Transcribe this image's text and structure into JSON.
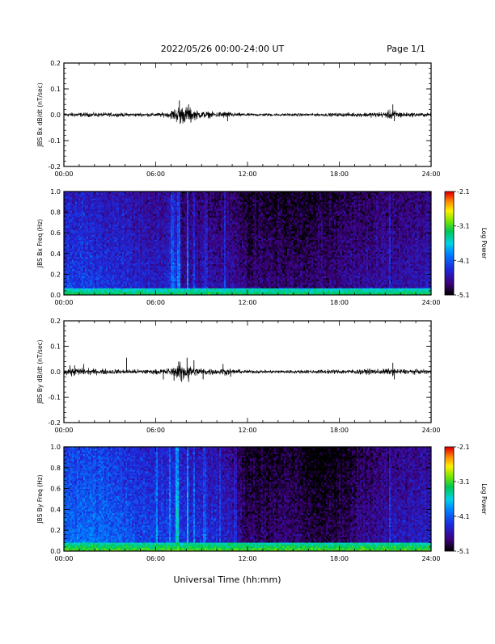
{
  "header": {
    "title": "2022/05/26  00:00-24:00 UT",
    "page": "Page 1/1"
  },
  "xlabel": "Universal Time (hh:mm)",
  "chart_data": [
    {
      "type": "line",
      "ylabel": "JBS Bx dB/dt (nT/sec)",
      "xlim": [
        0,
        24
      ],
      "ylim": [
        -0.2,
        0.2
      ],
      "x_ticks": [
        "00:00",
        "06:00",
        "12:00",
        "18:00",
        "24:00"
      ],
      "y_ticks": [
        "-0.2",
        "-0.1",
        "0.0",
        "0.1",
        "0.2"
      ],
      "noise_envelope": {
        "x": [
          0,
          2,
          4,
          6,
          6.8,
          7.3,
          7.6,
          8.1,
          8.4,
          9,
          10,
          10.6,
          11,
          12,
          14,
          16,
          18,
          19.5,
          20,
          21,
          21.4,
          21.8,
          22.5,
          24
        ],
        "amplitude": [
          0.012,
          0.012,
          0.01,
          0.01,
          0.015,
          0.04,
          0.05,
          0.045,
          0.03,
          0.02,
          0.015,
          0.02,
          0.012,
          0.008,
          0.008,
          0.008,
          0.01,
          0.012,
          0.014,
          0.016,
          0.03,
          0.02,
          0.012,
          0.01
        ]
      },
      "spikes": [
        {
          "x": 7.55,
          "y": 0.055
        },
        {
          "x": 7.6,
          "y": -0.035
        },
        {
          "x": 8.15,
          "y": 0.04
        },
        {
          "x": 8.3,
          "y": -0.03
        },
        {
          "x": 10.7,
          "y": -0.025
        },
        {
          "x": 21.5,
          "y": 0.04
        },
        {
          "x": 21.6,
          "y": -0.025
        }
      ]
    },
    {
      "type": "heatmap",
      "ylabel": "JBS Bx Freq (Hz)",
      "xlim": [
        0,
        24
      ],
      "ylim": [
        0,
        1
      ],
      "x_ticks": [
        "00:00",
        "06:00",
        "12:00",
        "18:00",
        "24:00"
      ],
      "y_ticks": [
        "0.0",
        "0.2",
        "0.4",
        "0.6",
        "0.8",
        "1.0"
      ],
      "colorbar": {
        "label": "Log Power",
        "min": -5.1,
        "max": -2.1,
        "ticks": [
          "-2.1",
          "-3.1",
          "-4.1",
          "-5.1"
        ]
      },
      "base_level": {
        "x": [
          0,
          3,
          6,
          7,
          7.5,
          9,
          11,
          12,
          15,
          18,
          21,
          24
        ],
        "z": [
          -4.2,
          -4.3,
          -4.45,
          -4.4,
          -4.6,
          -4.55,
          -4.6,
          -4.75,
          -4.8,
          -4.7,
          -4.6,
          -4.5
        ]
      },
      "bright_lines": [
        {
          "x": 7.1,
          "strength": 0.5
        },
        {
          "x": 7.3,
          "strength": 0.4
        },
        {
          "x": 7.5,
          "strength": 0.9
        },
        {
          "x": 8.1,
          "strength": 0.8
        },
        {
          "x": 8.5,
          "strength": 0.5
        },
        {
          "x": 9.3,
          "strength": 0.35
        },
        {
          "x": 10.5,
          "strength": 0.4
        },
        {
          "x": 21.3,
          "strength": 0.35
        }
      ],
      "low_freq_band": {
        "z": -3.2,
        "width": 0.06
      }
    },
    {
      "type": "line",
      "ylabel": "JBS By dB/dt (nT/sec)",
      "xlim": [
        0,
        24
      ],
      "ylim": [
        -0.2,
        0.2
      ],
      "x_ticks": [
        "00:00",
        "06:00",
        "12:00",
        "18:00",
        "24:00"
      ],
      "y_ticks": [
        "-0.2",
        "-0.1",
        "0.0",
        "0.1",
        "0.2"
      ],
      "noise_envelope": {
        "x": [
          0,
          1,
          2,
          4,
          6,
          6.8,
          7.3,
          7.6,
          8.1,
          8.4,
          9,
          10,
          10.6,
          11,
          12,
          14,
          16,
          18,
          19.5,
          20,
          21,
          21.4,
          21.8,
          22.5,
          24
        ],
        "amplitude": [
          0.018,
          0.022,
          0.016,
          0.013,
          0.013,
          0.02,
          0.03,
          0.05,
          0.045,
          0.03,
          0.02,
          0.016,
          0.02,
          0.014,
          0.01,
          0.01,
          0.01,
          0.012,
          0.014,
          0.016,
          0.016,
          0.02,
          0.016,
          0.014,
          0.012
        ]
      },
      "spikes": [
        {
          "x": 0.4,
          "y": 0.025
        },
        {
          "x": 0.5,
          "y": -0.018
        },
        {
          "x": 0.7,
          "y": 0.025
        },
        {
          "x": 1.3,
          "y": 0.03
        },
        {
          "x": 4.1,
          "y": 0.055
        },
        {
          "x": 6.5,
          "y": -0.03
        },
        {
          "x": 7.2,
          "y": -0.035
        },
        {
          "x": 7.5,
          "y": 0.04
        },
        {
          "x": 7.7,
          "y": -0.04
        },
        {
          "x": 8.05,
          "y": 0.055
        },
        {
          "x": 8.15,
          "y": -0.04
        },
        {
          "x": 8.5,
          "y": 0.045
        },
        {
          "x": 9.1,
          "y": -0.03
        },
        {
          "x": 10.4,
          "y": 0.03
        },
        {
          "x": 10.9,
          "y": -0.02
        },
        {
          "x": 21.5,
          "y": 0.035
        },
        {
          "x": 21.6,
          "y": -0.03
        }
      ]
    },
    {
      "type": "heatmap",
      "ylabel": "JBS By Freq (Hz)",
      "xlim": [
        0,
        24
      ],
      "ylim": [
        0,
        1
      ],
      "x_ticks": [
        "00:00",
        "06:00",
        "12:00",
        "18:00",
        "24:00"
      ],
      "y_ticks": [
        "0.0",
        "0.2",
        "0.4",
        "0.6",
        "0.8",
        "1.0"
      ],
      "colorbar": {
        "label": "Log Power",
        "min": -5.1,
        "max": -2.1,
        "ticks": [
          "-2.1",
          "-3.1",
          "-4.1",
          "-5.1"
        ]
      },
      "base_level": {
        "x": [
          0,
          2,
          4,
          6,
          7,
          8,
          10,
          11,
          12,
          13,
          15,
          16,
          17,
          18,
          20,
          22,
          24
        ],
        "z": [
          -4.0,
          -3.95,
          -4.1,
          -4.2,
          -4.15,
          -4.25,
          -4.35,
          -4.5,
          -4.8,
          -4.8,
          -4.75,
          -4.9,
          -4.95,
          -4.8,
          -4.65,
          -4.5,
          -4.4
        ]
      },
      "bright_lines": [
        {
          "x": 6.1,
          "strength": 0.5
        },
        {
          "x": 6.9,
          "strength": 0.35
        },
        {
          "x": 7.4,
          "strength": 0.9
        },
        {
          "x": 8.1,
          "strength": 0.7
        },
        {
          "x": 8.5,
          "strength": 0.5
        },
        {
          "x": 9.2,
          "strength": 0.35
        },
        {
          "x": 10.2,
          "strength": 0.35
        },
        {
          "x": 11.2,
          "strength": 0.25
        },
        {
          "x": 21.3,
          "strength": 0.4
        }
      ],
      "low_freq_band": {
        "z": -3.0,
        "width": 0.08
      }
    }
  ]
}
